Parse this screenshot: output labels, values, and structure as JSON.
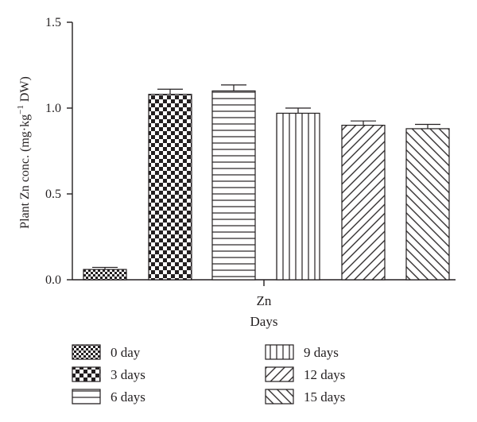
{
  "chart_data": {
    "type": "bar",
    "categories": [
      "Zn"
    ],
    "xlabel": "Days",
    "ylabel": "Plant Zn conc. (mg·kg",
    "ylabel_sup": "−1",
    "ylabel_tail": " DW)",
    "ylim": [
      0,
      1.5
    ],
    "yticks": [
      {
        "value": 0,
        "label": "0.0"
      },
      {
        "value": 0.5,
        "label": "0.5"
      },
      {
        "value": 1.0,
        "label": "1.0"
      },
      {
        "value": 1.5,
        "label": "1.5"
      }
    ],
    "grid": false,
    "legend_position": "bottom",
    "series": [
      {
        "name": "0 day",
        "values": [
          0.06
        ],
        "error": [
          0.012
        ],
        "pattern": "fine-check"
      },
      {
        "name": "3 days",
        "values": [
          1.08
        ],
        "error": [
          0.03
        ],
        "pattern": "big-check"
      },
      {
        "name": "6 days",
        "values": [
          1.1
        ],
        "error": [
          0.035
        ],
        "pattern": "horizontal"
      },
      {
        "name": "9 days",
        "values": [
          0.97
        ],
        "error": [
          0.03
        ],
        "pattern": "vertical"
      },
      {
        "name": "12 days",
        "values": [
          0.9
        ],
        "error": [
          0.025
        ],
        "pattern": "diag-up"
      },
      {
        "name": "15 days",
        "values": [
          0.88
        ],
        "error": [
          0.025
        ],
        "pattern": "diag-down"
      }
    ]
  }
}
